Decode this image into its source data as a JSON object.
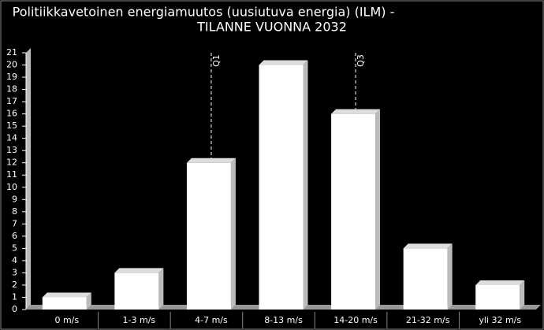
{
  "chart_data": {
    "type": "bar",
    "title_lines": [
      "Politiikkavetoinen energiamuutos (uusiutuva energia) (ILM) -",
      "TILANNE VUONNA 2032"
    ],
    "categories": [
      "0 m/s",
      "1-3 m/s",
      "4-7 m/s",
      "8-13 m/s",
      "14-20 m/s",
      "21-32 m/s",
      "yli 32 m/s"
    ],
    "values": [
      1,
      3,
      12,
      20,
      16,
      5,
      2
    ],
    "color": "#ffffff",
    "ylim": [
      0,
      21
    ],
    "yticks": [
      0,
      1,
      2,
      3,
      4,
      5,
      6,
      7,
      8,
      9,
      10,
      11,
      12,
      13,
      14,
      15,
      16,
      17,
      18,
      19,
      20,
      21
    ],
    "annotations": [
      {
        "text": "Q1",
        "category_index": 2
      },
      {
        "text": "Q3",
        "category_index": 4
      }
    ]
  }
}
